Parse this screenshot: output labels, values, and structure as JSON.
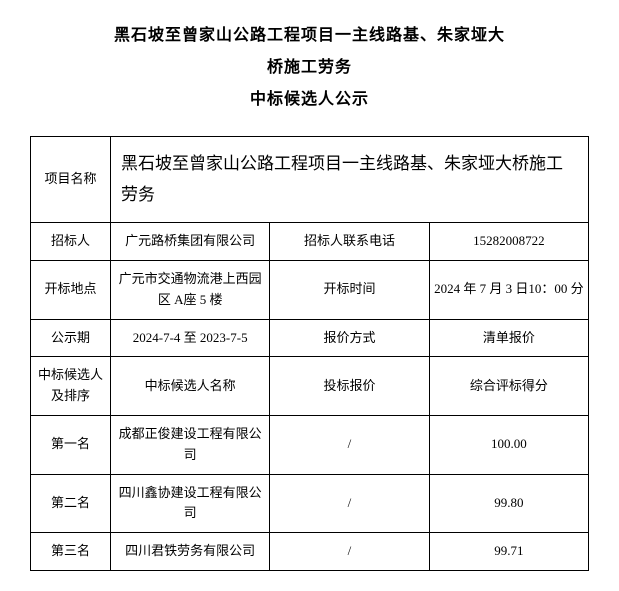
{
  "title": {
    "line1": "黑石坡至曾家山公路工程项目一主线路基、朱家垭大",
    "line2": "桥施工劳务",
    "line3": "中标候选人公示"
  },
  "labels": {
    "project_name": "项目名称",
    "tenderer": "招标人",
    "tenderer_contact": "招标人联系电话",
    "bid_location": "开标地点",
    "bid_time": "开标时间",
    "publicity_period": "公示期",
    "quote_method": "报价方式",
    "candidate_rank": "中标候选人及排序",
    "candidate_name": "中标候选人名称",
    "bid_price": "投标报价",
    "score": "综合评标得分",
    "rank1": "第一名",
    "rank2": "第二名",
    "rank3": "第三名"
  },
  "project": {
    "name": "黑石坡至曾家山公路工程项目一主线路基、朱家垭大桥施工劳务",
    "tenderer": "广元路桥集团有限公司",
    "tenderer_phone": "15282008722",
    "bid_location": "广元市交通物流港上西园区 A座 5 楼",
    "bid_time": "2024 年 7 月 3 日10：00 分",
    "publicity_period": "2024-7-4 至 2023-7-5",
    "quote_method": "清单报价"
  },
  "candidates": [
    {
      "name": "成都正俊建设工程有限公司",
      "price": "/",
      "score": "100.00"
    },
    {
      "name": "四川鑫协建设工程有限公司",
      "price": "/",
      "score": "99.80"
    },
    {
      "name": "四川君铁劳务有限公司",
      "price": "/",
      "score": "99.71"
    }
  ],
  "style": {
    "background_color": "#ffffff",
    "text_color": "#000000",
    "border_color": "#000000",
    "title_fontsize_pt": 12,
    "body_fontsize_pt": 10,
    "project_name_fontsize_pt": 13,
    "font_family": "SimSun"
  }
}
